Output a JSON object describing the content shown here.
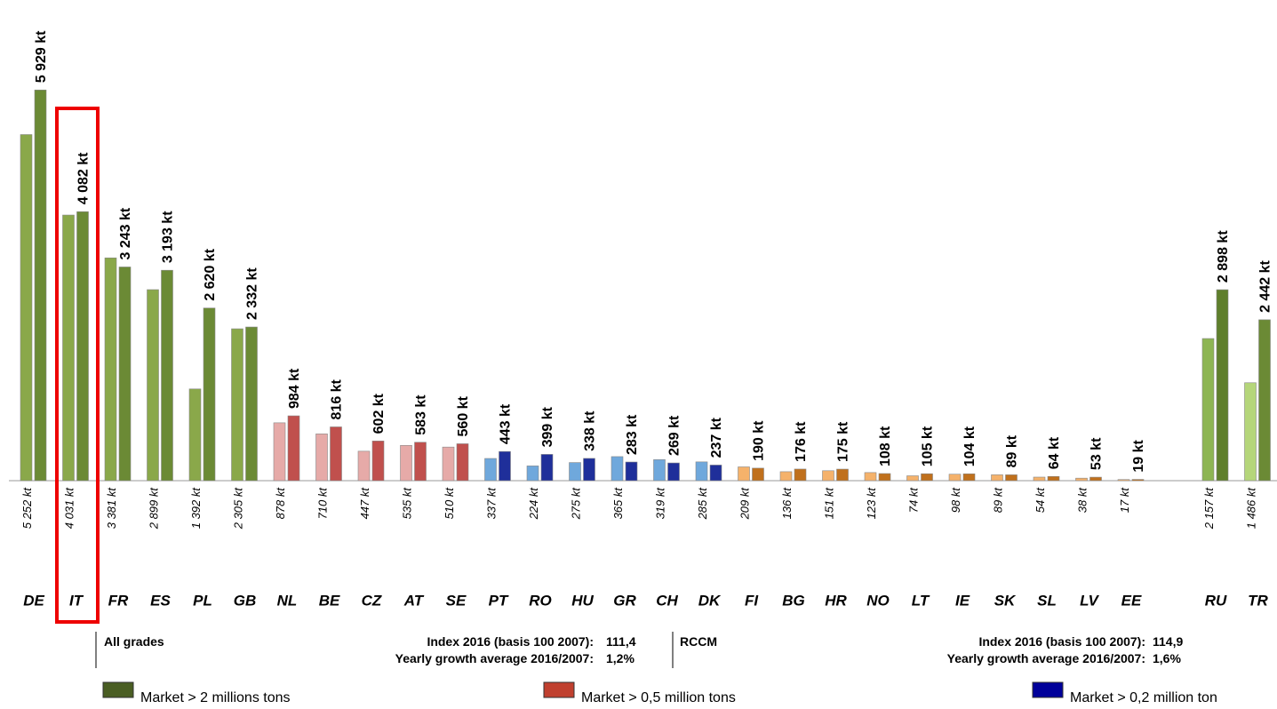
{
  "chart_data": {
    "type": "bar",
    "categories": [
      "DE",
      "IT",
      "FR",
      "ES",
      "PL",
      "GB",
      "NL",
      "BE",
      "CZ",
      "AT",
      "SE",
      "PT",
      "RO",
      "HU",
      "GR",
      "CH",
      "DK",
      "FI",
      "BG",
      "HR",
      "NO",
      "LT",
      "IE",
      "SK",
      "SL",
      "LV",
      "EE",
      null,
      "RU",
      "TR"
    ],
    "series": [
      {
        "values": [
          5252,
          4031,
          3381,
          2899,
          1392,
          2305,
          878,
          710,
          447,
          535,
          510,
          337,
          224,
          275,
          365,
          319,
          285,
          209,
          136,
          151,
          123,
          74,
          98,
          89,
          54,
          38,
          17,
          null,
          2157,
          1486
        ],
        "value_labels": [
          "5 252 kt",
          "4 031 kt",
          "3 381 kt",
          "2 899 kt",
          "1 392 kt",
          "2 305 kt",
          "878 kt",
          "710 kt",
          "447 kt",
          "535 kt",
          "510 kt",
          "337 kt",
          "224 kt",
          "275 kt",
          "365 kt",
          "319 kt",
          "285 kt",
          "209 kt",
          "136 kt",
          "151 kt",
          "123 kt",
          "74 kt",
          "98 kt",
          "89 kt",
          "54 kt",
          "38 kt",
          "17 kt",
          null,
          "2 157 kt",
          "1 486 kt"
        ],
        "colors": [
          "#8aa84a",
          "#8aa84a",
          "#8aa84a",
          "#8aa84a",
          "#8aa84a",
          "#8aa84a",
          "#e6aaa8",
          "#e6aaa8",
          "#e6aaa8",
          "#e6aaa8",
          "#e6aaa8",
          "#6fa8dc",
          "#6fa8dc",
          "#6fa8dc",
          "#6fa8dc",
          "#6fa8dc",
          "#6fa8dc",
          "#f5b26b",
          "#f5b26b",
          "#f5b26b",
          "#f5b26b",
          "#f5b26b",
          "#f5b26b",
          "#f5b26b",
          "#f5b26b",
          "#f5b26b",
          "#f5b26b",
          null,
          "#8db553",
          "#b5d67a"
        ]
      },
      {
        "values": [
          5929,
          4082,
          3243,
          3193,
          2620,
          2332,
          984,
          816,
          602,
          583,
          560,
          443,
          399,
          338,
          283,
          269,
          237,
          190,
          176,
          175,
          108,
          105,
          104,
          89,
          64,
          53,
          19,
          null,
          2898,
          2442
        ],
        "value_labels": [
          "5 929 kt",
          "4 082 kt",
          "3 243 kt",
          "3 193 kt",
          "2 620 kt",
          "2 332 kt",
          "984 kt",
          "816 kt",
          "602 kt",
          "583 kt",
          "560 kt",
          "443 kt",
          "399 kt",
          "338 kt",
          "283 kt",
          "269 kt",
          "237 kt",
          "190 kt",
          "176 kt",
          "175 kt",
          "108 kt",
          "105 kt",
          "104 kt",
          "89 kt",
          "64 kt",
          "53 kt",
          "19 kt",
          null,
          "2 898 kt",
          "2 442 kt"
        ],
        "colors": [
          "#6b8a35",
          "#6b8a35",
          "#6b8a35",
          "#6b8a35",
          "#6b8a35",
          "#6b8a35",
          "#c0504d",
          "#c0504d",
          "#c0504d",
          "#c0504d",
          "#c0504d",
          "#1f2f9a",
          "#1f2f9a",
          "#1f2f9a",
          "#1f2f9a",
          "#1f2f9a",
          "#1f2f9a",
          "#c0701c",
          "#c0701c",
          "#c0701c",
          "#c0701c",
          "#c0701c",
          "#c0701c",
          "#c0701c",
          "#c0701c",
          "#c0701c",
          "#c0701c",
          null,
          "#5f7f2c",
          "#6b8a35"
        ]
      }
    ],
    "ylim": [
      0,
      6000
    ],
    "notes": [
      {
        "title": "All grades",
        "index_label": "Index 2016 (basis 100 2007):",
        "index": "111,4",
        "growth_label": "Yearly growth average 2016/2007:",
        "growth": "1,2%"
      },
      {
        "title": "RCCM",
        "index_label": "Index 2016 (basis 100 2007):",
        "index": "114,9",
        "growth_label": "Yearly growth average 2016/2007:",
        "growth": "1,6%"
      }
    ],
    "legend": [
      {
        "name": "Market > 2 millions tons",
        "color": "#4a5e23"
      },
      {
        "name": "Market > 0,5 million tons",
        "color": "#c0402f"
      },
      {
        "name": "Market > 0,2 million ton",
        "color": "#00009a"
      }
    ]
  }
}
